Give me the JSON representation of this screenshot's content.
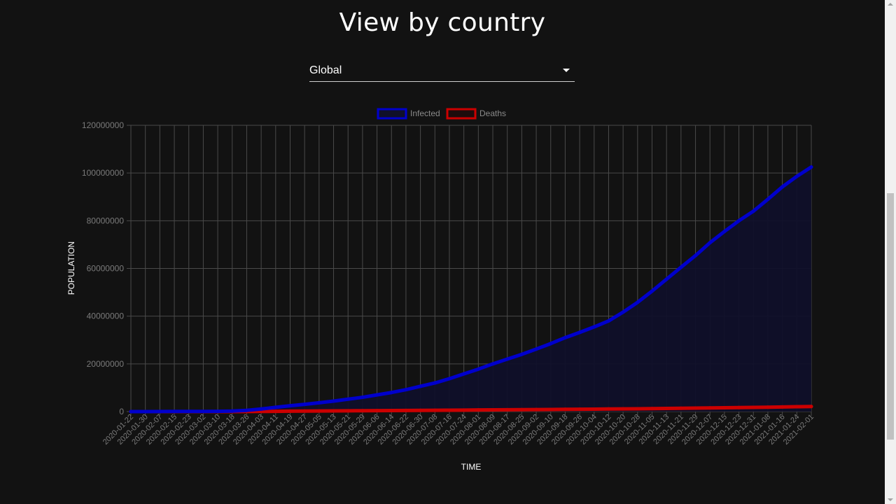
{
  "page": {
    "title": "View by country"
  },
  "selector": {
    "value": "Global"
  },
  "colors": {
    "background": "#121212",
    "infected": "#0000cc",
    "infected_fill": "#10102a",
    "deaths": "#cc0000",
    "grid": "#4a4a4a",
    "tick_text": "#7a7a7a"
  },
  "chart_data": {
    "type": "line",
    "title": "",
    "xlabel": "TIME",
    "ylabel": "POPULATION",
    "ylim": [
      0,
      120000000
    ],
    "yticks": [
      0,
      20000000,
      40000000,
      60000000,
      80000000,
      100000000,
      120000000
    ],
    "ytick_labels": [
      "0",
      "20000000",
      "40000000",
      "60000000",
      "80000000",
      "100000000",
      "120000000"
    ],
    "legend_position": "top",
    "grid": true,
    "x": [
      "2020-01-22",
      "2020-01-30",
      "2020-02-07",
      "2020-02-15",
      "2020-02-23",
      "2020-03-02",
      "2020-03-10",
      "2020-03-18",
      "2020-03-26",
      "2020-04-03",
      "2020-04-11",
      "2020-04-19",
      "2020-04-27",
      "2020-05-05",
      "2020-05-13",
      "2020-05-21",
      "2020-05-29",
      "2020-06-06",
      "2020-06-14",
      "2020-06-22",
      "2020-06-30",
      "2020-07-08",
      "2020-07-16",
      "2020-07-24",
      "2020-08-01",
      "2020-08-09",
      "2020-08-17",
      "2020-08-25",
      "2020-09-02",
      "2020-09-10",
      "2020-09-18",
      "2020-09-26",
      "2020-10-04",
      "2020-10-12",
      "2020-10-20",
      "2020-10-28",
      "2020-11-05",
      "2020-11-13",
      "2020-11-21",
      "2020-11-29",
      "2020-12-07",
      "2020-12-15",
      "2020-12-23",
      "2020-12-31",
      "2021-01-08",
      "2021-01-16",
      "2021-01-24",
      "2021-02-01"
    ],
    "series": [
      {
        "name": "Infected",
        "values": [
          555,
          9900,
          31500,
          69000,
          79000,
          90000,
          119000,
          217000,
          530000,
          1100000,
          1800000,
          2470000,
          3050000,
          3700000,
          4400000,
          5200000,
          6000000,
          7000000,
          8000000,
          9200000,
          10600000,
          12000000,
          13800000,
          15800000,
          17800000,
          20000000,
          22000000,
          24000000,
          26200000,
          28500000,
          31000000,
          33200000,
          35500000,
          38000000,
          41700000,
          45800000,
          50500000,
          55500000,
          60500000,
          65400000,
          70800000,
          75500000,
          80000000,
          84000000,
          89000000,
          94200000,
          98600000,
          102500000
        ]
      },
      {
        "name": "Deaths",
        "values": [
          17,
          213,
          636,
          1666,
          2460,
          3100,
          4300,
          9000,
          27000,
          59000,
          107000,
          166000,
          212000,
          256000,
          295000,
          331000,
          368000,
          400000,
          434000,
          469000,
          510000,
          548000,
          590000,
          638000,
          683000,
          726000,
          770000,
          812000,
          853000,
          895000,
          938000,
          980000,
          1040000,
          1085000,
          1135000,
          1190000,
          1255000,
          1320000,
          1390000,
          1465000,
          1540000,
          1615000,
          1690000,
          1760000,
          1850000,
          1950000,
          2040000,
          2140000
        ]
      }
    ]
  }
}
